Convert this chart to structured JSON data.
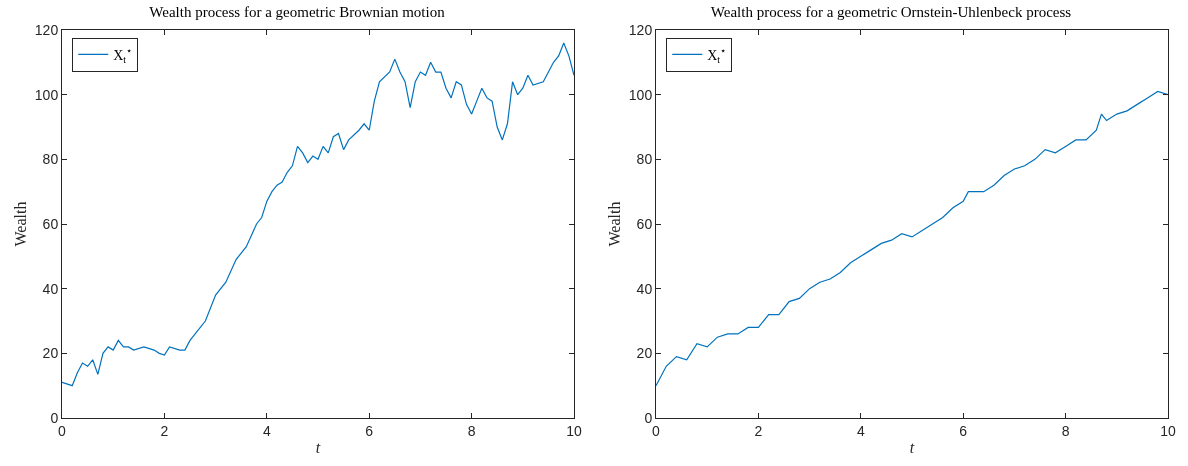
{
  "chart_data": [
    {
      "type": "line",
      "title": "Wealth process for a geometric Brownian motion",
      "xlabel": "t",
      "ylabel": "Wealth",
      "xlim": [
        0,
        10
      ],
      "xticks": [
        0,
        2,
        4,
        6,
        8,
        10
      ],
      "ylim": [
        0,
        120
      ],
      "yticks": [
        0,
        20,
        40,
        60,
        80,
        100,
        120
      ],
      "grid": false,
      "legend": "top left",
      "marker": "none",
      "line_style": "solid",
      "x": [
        0,
        0.2,
        0.3,
        0.4,
        0.5,
        0.6,
        0.7,
        0.8,
        0.9,
        1.0,
        1.1,
        1.2,
        1.3,
        1.4,
        1.6,
        1.8,
        1.9,
        2.0,
        2.1,
        2.3,
        2.4,
        2.5,
        2.6,
        2.8,
        3.0,
        3.2,
        3.4,
        3.6,
        3.8,
        3.9,
        4.0,
        4.1,
        4.2,
        4.3,
        4.4,
        4.5,
        4.6,
        4.7,
        4.8,
        4.9,
        5.0,
        5.1,
        5.2,
        5.3,
        5.4,
        5.5,
        5.6,
        5.8,
        5.9,
        6.0,
        6.1,
        6.2,
        6.4,
        6.5,
        6.6,
        6.7,
        6.8,
        6.9,
        7.0,
        7.1,
        7.2,
        7.3,
        7.4,
        7.5,
        7.6,
        7.7,
        7.8,
        7.9,
        8.0,
        8.1,
        8.2,
        8.3,
        8.4,
        8.5,
        8.6,
        8.7,
        8.8,
        8.9,
        9.0,
        9.1,
        9.2,
        9.4,
        9.6,
        9.7,
        9.8,
        9.9,
        10
      ],
      "series": [
        {
          "name": "X$_{t}$$^{⋆}$",
          "color": "#0072bd",
          "values": [
            11,
            10,
            14,
            17,
            16,
            18,
            13.5,
            20,
            22,
            21,
            24,
            22,
            22,
            21,
            22,
            21,
            20,
            19.5,
            22,
            21,
            21,
            24,
            26,
            30,
            38,
            42,
            49,
            53,
            60,
            62,
            67,
            70,
            72,
            73,
            76,
            78,
            84,
            82,
            79,
            81,
            80,
            84,
            82,
            87,
            88,
            83,
            86,
            89,
            91,
            89,
            98,
            104,
            107,
            111,
            107,
            104,
            96,
            104,
            107,
            106,
            110,
            107,
            107,
            102,
            99,
            104,
            103,
            97,
            94,
            98,
            102,
            99,
            98,
            90,
            86,
            91,
            104,
            100,
            102,
            106,
            103,
            104,
            110,
            112,
            116,
            112,
            106
          ]
        }
      ]
    },
    {
      "type": "line",
      "title": "Wealth process for a geometric Ornstein-Uhlenbeck process",
      "xlabel": "t",
      "ylabel": "Wealth",
      "xlim": [
        0,
        10
      ],
      "xticks": [
        0,
        2,
        4,
        6,
        8,
        10
      ],
      "ylim": [
        0,
        120
      ],
      "yticks": [
        0,
        20,
        40,
        60,
        80,
        100,
        120
      ],
      "grid": false,
      "legend": "top left",
      "marker": "none",
      "line_style": "solid",
      "x": [
        0,
        0.2,
        0.4,
        0.6,
        0.8,
        1.0,
        1.2,
        1.4,
        1.6,
        1.8,
        2.0,
        2.2,
        2.4,
        2.6,
        2.8,
        3.0,
        3.2,
        3.4,
        3.6,
        3.8,
        4.0,
        4.2,
        4.4,
        4.6,
        4.8,
        5.0,
        5.2,
        5.4,
        5.6,
        5.8,
        6.0,
        6.1,
        6.4,
        6.6,
        6.8,
        7.0,
        7.2,
        7.4,
        7.6,
        7.8,
        8.0,
        8.2,
        8.4,
        8.6,
        8.7,
        8.8,
        9.0,
        9.2,
        9.4,
        9.6,
        9.8,
        10
      ],
      "series": [
        {
          "name": "X$_{t}$$^{⋆}$",
          "color": "#0072bd",
          "values": [
            10,
            16,
            19,
            18,
            23,
            22,
            25,
            26,
            26,
            28,
            28,
            32,
            32,
            36,
            37,
            40,
            42,
            43,
            45,
            48,
            50,
            52,
            54,
            55,
            57,
            56,
            58,
            60,
            62,
            65,
            67,
            70,
            70,
            72,
            75,
            77,
            78,
            80,
            83,
            82,
            84,
            86,
            86,
            89,
            94,
            92,
            94,
            95,
            97,
            99,
            101,
            100
          ]
        }
      ]
    }
  ]
}
